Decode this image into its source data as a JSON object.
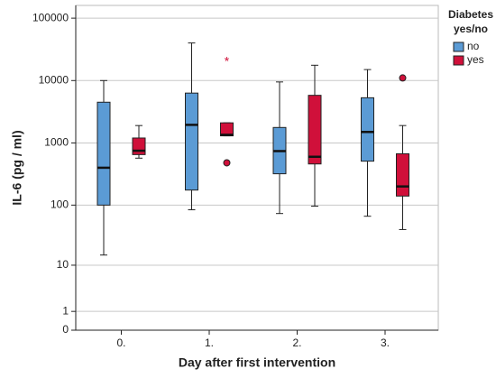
{
  "chart_data": {
    "type": "box",
    "xlabel": "Day after first intervention",
    "ylabel": "IL-6 (pg / ml)",
    "categories": [
      "0.",
      "1.",
      "2.",
      "3."
    ],
    "yscale": "safe-log",
    "ylim": [
      0,
      160000
    ],
    "yticks": [
      0,
      1,
      10,
      100,
      1000,
      10000,
      100000
    ],
    "grid": true,
    "legend_title": [
      "Diabetes",
      "yes/no"
    ],
    "legend_position": "top-right",
    "series": [
      {
        "name": "no",
        "color": "#5b9bd5",
        "boxes": [
          {
            "min": 15,
            "q1": 100,
            "median": 400,
            "q3": 4500,
            "max": 10000
          },
          {
            "min": 84,
            "q1": 175,
            "median": 1950,
            "q3": 6300,
            "max": 40000
          },
          {
            "min": 73,
            "q1": 320,
            "median": 740,
            "q3": 1770,
            "max": 9500
          },
          {
            "min": 66,
            "q1": 510,
            "median": 1500,
            "q3": 5300,
            "max": 15000
          }
        ],
        "outliers": []
      },
      {
        "name": "yes",
        "color": "#d0103a",
        "boxes": [
          {
            "min": 570,
            "q1": 650,
            "median": 750,
            "q3": 1200,
            "max": 1900
          },
          {
            "min": 1300,
            "q1": 1300,
            "median": 1350,
            "q3": 2100,
            "max": 2100
          },
          {
            "min": 96,
            "q1": 460,
            "median": 600,
            "q3": 5800,
            "max": 17600
          },
          {
            "min": 40,
            "q1": 140,
            "median": 200,
            "q3": 670,
            "max": 1900
          }
        ],
        "outliers": [
          {
            "category": "1.",
            "value": 480,
            "marker": "circle"
          },
          {
            "category": "1.",
            "value": 21000,
            "marker": "star"
          },
          {
            "category": "3.",
            "value": 11000,
            "marker": "circle"
          }
        ]
      }
    ]
  }
}
